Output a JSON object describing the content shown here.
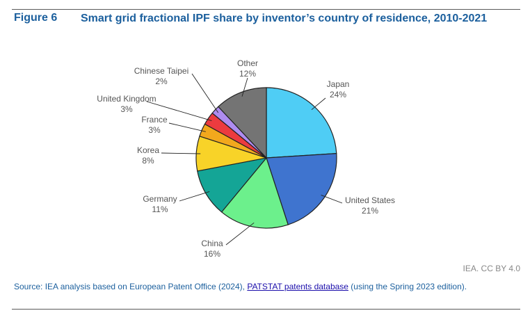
{
  "figure": {
    "label": "Figure 6",
    "title": "Smart grid fractional IPF share by inventor’s country of residence, 2010-2021"
  },
  "credit": "IEA. CC BY 4.0",
  "source": {
    "prefix": "Source: IEA analysis based on European Patent Office (2024), ",
    "link_text": "PATSTAT patents database",
    "suffix": " (using the Spring 2023 edition)."
  },
  "chart_data": {
    "type": "pie",
    "title": "Smart grid fractional IPF share by inventor’s country of residence, 2010-2021",
    "slices": [
      {
        "label": "Japan",
        "value": 24,
        "value_label": "24%",
        "color": "#4fcdf5"
      },
      {
        "label": "United States",
        "value": 21,
        "value_label": "21%",
        "color": "#3f74cf"
      },
      {
        "label": "China",
        "value": 16,
        "value_label": "16%",
        "color": "#6cf08c"
      },
      {
        "label": "Germany",
        "value": 11,
        "value_label": "11%",
        "color": "#14a596"
      },
      {
        "label": "Korea",
        "value": 8,
        "value_label": "8%",
        "color": "#f8d328"
      },
      {
        "label": "France",
        "value": 3,
        "value_label": "3%",
        "color": "#f2a81d"
      },
      {
        "label": "United Kingdom",
        "value": 3,
        "value_label": "3%",
        "color": "#ec3b3f"
      },
      {
        "label": "Chinese Taipei",
        "value": 2,
        "value_label": "2%",
        "color": "#ae8cf0"
      },
      {
        "label": "Other",
        "value": 12,
        "value_label": "12%",
        "color": "#747474"
      }
    ],
    "legend": "none"
  }
}
